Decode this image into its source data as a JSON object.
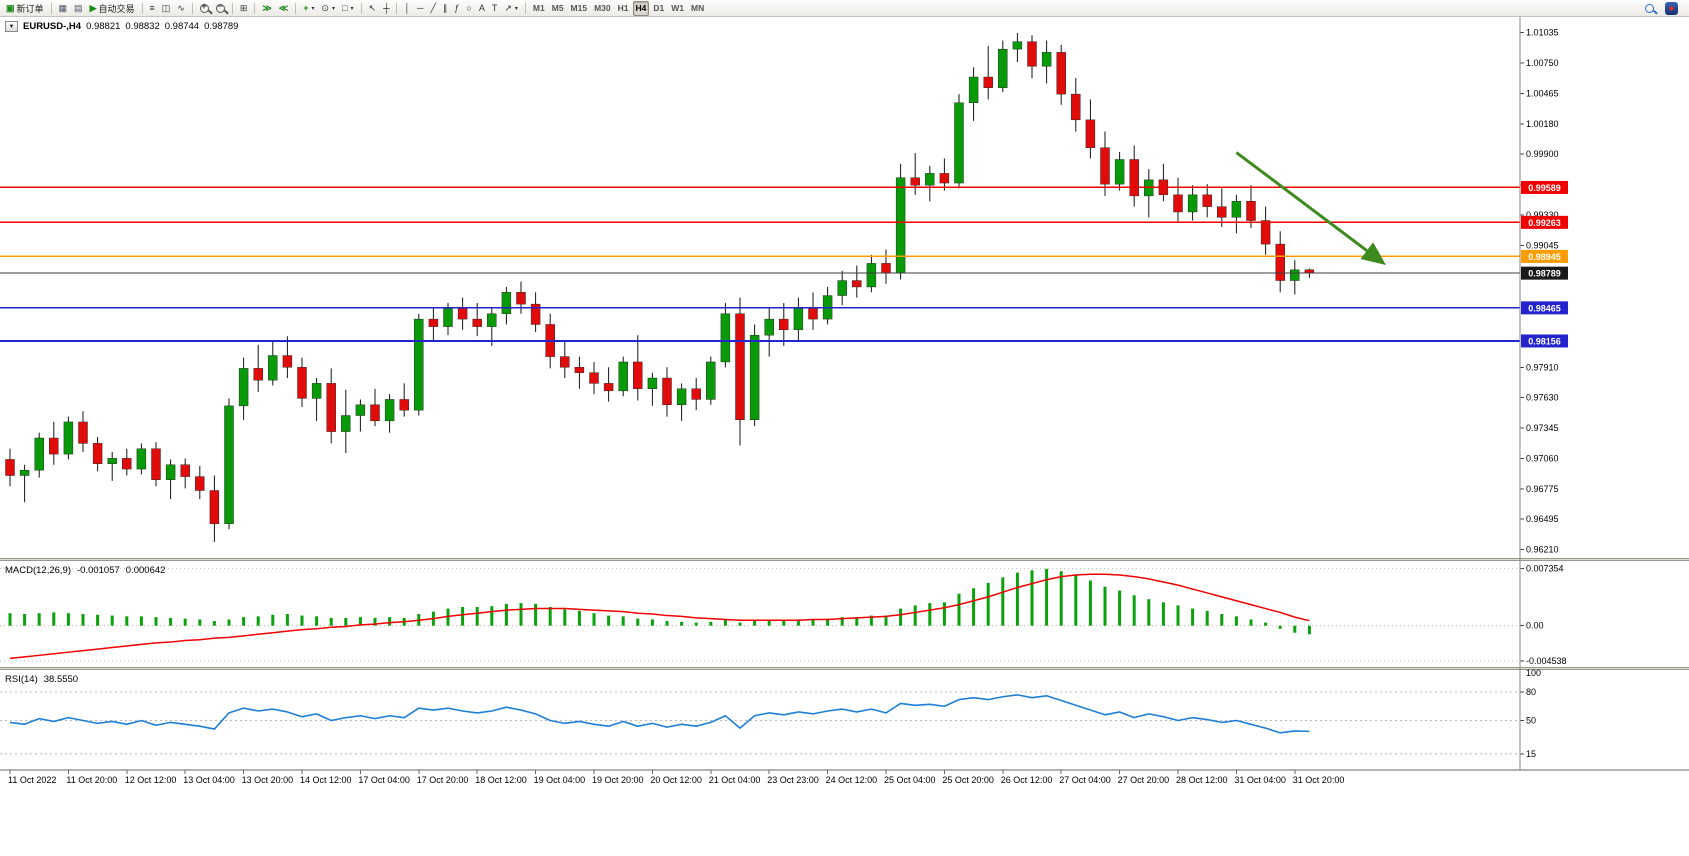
{
  "toolbar": {
    "new_order": "新订单",
    "auto_trading": "自动交易",
    "timeframes": [
      "M1",
      "M5",
      "M15",
      "M30",
      "H1",
      "H4",
      "D1",
      "W1",
      "MN"
    ],
    "active_timeframe": "H4",
    "glyphs": {
      "new_order": "▣",
      "charts": "▦",
      "market_watch": "▤",
      "auto_trading": "▶",
      "bar_chart": "≡",
      "candle_chart": "◫",
      "line_chart": "∿",
      "zoom_in": "+",
      "zoom_out": "−",
      "tile_windows": "⊞",
      "auto_scroll": "≫",
      "chart_shift": "≪",
      "indicators": "+",
      "periods": "⊙",
      "templates": "□",
      "cursor": "↖",
      "crosshair": "┼",
      "vertical_line": "│",
      "horizontal_line": "─",
      "trendline": "╱",
      "channel": "∥",
      "fibonacci": "ƒ",
      "shapes": "○",
      "text": "A",
      "text_label": "T",
      "arrows_tool": "↗",
      "caret": "▾",
      "record": "●",
      "dropdown": "▼"
    }
  },
  "chart": {
    "title": "EURUSD-,H4",
    "open": "0.98821",
    "high": "0.98832",
    "low": "0.98744",
    "close": "0.98789"
  },
  "macd": {
    "label": "MACD(12,26,9)",
    "value_main": "-0.001057",
    "value_signal": "0.000642"
  },
  "rsi": {
    "label": "RSI(14)",
    "value": "38.5550"
  },
  "chart_data": {
    "type": "candlestick",
    "symbol": "EURUSD-",
    "timeframe": "H4",
    "price_range": [
      0.9613,
      1.0118
    ],
    "axis_ticks": [
      1.01035,
      1.0075,
      1.00465,
      1.0018,
      0.999,
      0.9961,
      0.9933,
      0.99045,
      0.9791,
      0.9763,
      0.97345,
      0.9706,
      0.96775,
      0.96495,
      0.9621
    ],
    "price_levels": [
      {
        "price": 0.99589,
        "label": "0.99589",
        "color": "#f20000",
        "type": "resistance"
      },
      {
        "price": 0.99263,
        "label": "0.99263",
        "color": "#f20000",
        "type": "resistance"
      },
      {
        "price": 0.98945,
        "label": "0.98945",
        "color": "#ff9c00",
        "type": "pivot"
      },
      {
        "price": 0.98789,
        "label": "0.98789",
        "color": "#3c3c3c",
        "type": "bid"
      },
      {
        "price": 0.98465,
        "label": "0.98465",
        "color": "#2424cc",
        "type": "support"
      },
      {
        "price": 0.98156,
        "label": "0.98156",
        "color": "#2424cc",
        "type": "support"
      }
    ],
    "time_labels": [
      "11 Oct 2022",
      "11 Oct 20:00",
      "12 Oct 12:00",
      "13 Oct 04:00",
      "13 Oct 20:00",
      "14 Oct 12:00",
      "17 Oct 04:00",
      "17 Oct 20:00",
      "18 Oct 12:00",
      "19 Oct 04:00",
      "19 Oct 20:00",
      "20 Oct 12:00",
      "21 Oct 04:00",
      "23 Oct 23:00",
      "24 Oct 12:00",
      "25 Oct 04:00",
      "25 Oct 20:00",
      "26 Oct 12:00",
      "27 Oct 04:00",
      "27 Oct 20:00",
      "28 Oct 12:00",
      "31 Oct 04:00",
      "31 Oct 20:00"
    ],
    "candles": [
      [
        0.9705,
        0.9715,
        0.968,
        0.969
      ],
      [
        0.969,
        0.97,
        0.9665,
        0.9695
      ],
      [
        0.9695,
        0.973,
        0.9688,
        0.9725
      ],
      [
        0.9725,
        0.974,
        0.97,
        0.971
      ],
      [
        0.971,
        0.9745,
        0.9705,
        0.974
      ],
      [
        0.974,
        0.975,
        0.9712,
        0.972
      ],
      [
        0.972,
        0.9726,
        0.9694,
        0.9701
      ],
      [
        0.9701,
        0.9712,
        0.9685,
        0.9706
      ],
      [
        0.9706,
        0.9715,
        0.969,
        0.9696
      ],
      [
        0.9696,
        0.972,
        0.9691,
        0.9715
      ],
      [
        0.9715,
        0.9721,
        0.968,
        0.9686
      ],
      [
        0.9686,
        0.9705,
        0.9668,
        0.97
      ],
      [
        0.97,
        0.9706,
        0.9678,
        0.9689
      ],
      [
        0.9689,
        0.9699,
        0.9668,
        0.9676
      ],
      [
        0.9676,
        0.969,
        0.9628,
        0.9645
      ],
      [
        0.9645,
        0.9762,
        0.964,
        0.9755
      ],
      [
        0.9755,
        0.98,
        0.9742,
        0.979
      ],
      [
        0.979,
        0.9812,
        0.9768,
        0.9779
      ],
      [
        0.9779,
        0.9816,
        0.9774,
        0.9802
      ],
      [
        0.9802,
        0.982,
        0.9781,
        0.9791
      ],
      [
        0.9791,
        0.98,
        0.9754,
        0.9762
      ],
      [
        0.9762,
        0.9781,
        0.9741,
        0.9776
      ],
      [
        0.9776,
        0.979,
        0.972,
        0.9731
      ],
      [
        0.9731,
        0.977,
        0.9711,
        0.9746
      ],
      [
        0.9746,
        0.9761,
        0.9731,
        0.9756
      ],
      [
        0.9756,
        0.9771,
        0.9736,
        0.9741
      ],
      [
        0.9741,
        0.9766,
        0.973,
        0.9761
      ],
      [
        0.9761,
        0.9776,
        0.9745,
        0.9751
      ],
      [
        0.9751,
        0.9841,
        0.9746,
        0.9836
      ],
      [
        0.9836,
        0.9846,
        0.9815,
        0.9829
      ],
      [
        0.9829,
        0.9851,
        0.9821,
        0.9846
      ],
      [
        0.9846,
        0.9856,
        0.9826,
        0.9836
      ],
      [
        0.9836,
        0.9851,
        0.982,
        0.9829
      ],
      [
        0.9829,
        0.9846,
        0.9811,
        0.9841
      ],
      [
        0.9841,
        0.9866,
        0.9831,
        0.9861
      ],
      [
        0.9861,
        0.9871,
        0.9841,
        0.985
      ],
      [
        0.985,
        0.9861,
        0.9824,
        0.9831
      ],
      [
        0.9831,
        0.9841,
        0.979,
        0.9801
      ],
      [
        0.9801,
        0.9816,
        0.9781,
        0.9791
      ],
      [
        0.9791,
        0.9801,
        0.9771,
        0.9786
      ],
      [
        0.9786,
        0.9796,
        0.9766,
        0.9776
      ],
      [
        0.9776,
        0.9791,
        0.9759,
        0.9769
      ],
      [
        0.9769,
        0.9801,
        0.9764,
        0.9796
      ],
      [
        0.9796,
        0.9821,
        0.976,
        0.9771
      ],
      [
        0.9771,
        0.9786,
        0.9755,
        0.9781
      ],
      [
        0.9781,
        0.9791,
        0.9745,
        0.9756
      ],
      [
        0.9756,
        0.9776,
        0.9741,
        0.9771
      ],
      [
        0.9771,
        0.9781,
        0.9751,
        0.9761
      ],
      [
        0.9761,
        0.9801,
        0.9756,
        0.9796
      ],
      [
        0.9796,
        0.9851,
        0.9791,
        0.9841
      ],
      [
        0.9841,
        0.9856,
        0.9718,
        0.9742
      ],
      [
        0.9742,
        0.9831,
        0.9736,
        0.9821
      ],
      [
        0.9821,
        0.9846,
        0.9801,
        0.9836
      ],
      [
        0.9836,
        0.9851,
        0.9811,
        0.9826
      ],
      [
        0.9826,
        0.9856,
        0.9816,
        0.9846
      ],
      [
        0.9846,
        0.9861,
        0.9826,
        0.9836
      ],
      [
        0.9836,
        0.9866,
        0.9831,
        0.9858
      ],
      [
        0.9858,
        0.9881,
        0.9849,
        0.9872
      ],
      [
        0.9872,
        0.9886,
        0.9856,
        0.9866
      ],
      [
        0.9866,
        0.9896,
        0.9861,
        0.9888
      ],
      [
        0.9888,
        0.9901,
        0.9869,
        0.9879
      ],
      [
        0.9879,
        0.9981,
        0.9873,
        0.9968
      ],
      [
        0.9968,
        0.9991,
        0.9952,
        0.9961
      ],
      [
        0.9961,
        0.9979,
        0.9946,
        0.9972
      ],
      [
        0.9972,
        0.9986,
        0.9956,
        0.9963
      ],
      [
        0.9963,
        1.0046,
        0.9958,
        1.0038
      ],
      [
        1.0038,
        1.0071,
        1.0021,
        1.0062
      ],
      [
        1.0062,
        1.0091,
        1.0041,
        1.0052
      ],
      [
        1.0052,
        1.0096,
        1.0048,
        1.0088
      ],
      [
        1.0088,
        1.0103,
        1.0076,
        1.0095
      ],
      [
        1.0095,
        1.0101,
        1.0061,
        1.0072
      ],
      [
        1.0072,
        1.0096,
        1.0056,
        1.0085
      ],
      [
        1.0085,
        1.0092,
        1.0036,
        1.0046
      ],
      [
        1.0046,
        1.0061,
        1.0011,
        1.0022
      ],
      [
        1.0022,
        1.0041,
        0.9986,
        0.9996
      ],
      [
        0.9996,
        1.0011,
        0.9951,
        0.9962
      ],
      [
        0.9962,
        0.9992,
        0.9956,
        0.9985
      ],
      [
        0.9985,
        0.9998,
        0.9941,
        0.9951
      ],
      [
        0.9951,
        0.9976,
        0.9931,
        0.9966
      ],
      [
        0.9966,
        0.9981,
        0.9946,
        0.9952
      ],
      [
        0.9952,
        0.9968,
        0.9926,
        0.9936
      ],
      [
        0.9936,
        0.9961,
        0.9928,
        0.9952
      ],
      [
        0.9952,
        0.9962,
        0.9931,
        0.9941
      ],
      [
        0.9941,
        0.9958,
        0.9922,
        0.9931
      ],
      [
        0.9931,
        0.9952,
        0.9916,
        0.9946
      ],
      [
        0.9946,
        0.9961,
        0.9921,
        0.9928
      ],
      [
        0.9928,
        0.9941,
        0.9896,
        0.9906
      ],
      [
        0.9906,
        0.9918,
        0.9861,
        0.9872
      ],
      [
        0.9872,
        0.9891,
        0.9859,
        0.9882
      ],
      [
        0.98821,
        0.98832,
        0.98744,
        0.98789
      ]
    ],
    "arrow": {
      "x1_index": 84,
      "price1": 0.99915,
      "x2_index": 94,
      "price2": 0.9889,
      "color": "#3e8a1e"
    },
    "macd": {
      "range": [
        -0.0053,
        0.0083
      ],
      "axis_levels": [
        0.007354,
        0,
        -0.004538
      ],
      "axis_labels": [
        "0.007354",
        "0.00",
        "-0.004538"
      ],
      "histogram_color": "#0aa10a",
      "signal_color": "#f20000",
      "histogram": [
        0.0016,
        0.0015,
        0.0016,
        0.0017,
        0.0016,
        0.0015,
        0.0014,
        0.0013,
        0.0012,
        0.0012,
        0.0011,
        0.001,
        0.0009,
        0.0008,
        0.0006,
        0.0008,
        0.0011,
        0.0012,
        0.0014,
        0.0015,
        0.0013,
        0.0012,
        0.001,
        0.001,
        0.0011,
        0.001,
        0.0011,
        0.001,
        0.0015,
        0.0018,
        0.0022,
        0.0024,
        0.0024,
        0.0025,
        0.0028,
        0.0029,
        0.0028,
        0.0024,
        0.0021,
        0.0019,
        0.0016,
        0.0013,
        0.0012,
        0.0009,
        0.0008,
        0.0006,
        0.0005,
        0.0004,
        0.0005,
        0.0008,
        0.0004,
        0.0006,
        0.0007,
        0.0007,
        0.0008,
        0.0008,
        0.0009,
        0.0011,
        0.0011,
        0.0013,
        0.0013,
        0.0022,
        0.0026,
        0.0029,
        0.003,
        0.0041,
        0.0048,
        0.0055,
        0.0062,
        0.0068,
        0.0071,
        0.0073,
        0.007,
        0.0065,
        0.0058,
        0.005,
        0.0045,
        0.0039,
        0.0034,
        0.003,
        0.0026,
        0.0022,
        0.0019,
        0.0015,
        0.0012,
        0.0008,
        0.0004,
        -0.0004,
        -0.0009,
        -0.0011
      ],
      "signal": [
        -0.0042,
        -0.004,
        -0.0038,
        -0.0036,
        -0.0034,
        -0.0032,
        -0.003,
        -0.0028,
        -0.0026,
        -0.0024,
        -0.0022,
        -0.0021,
        -0.0019,
        -0.0018,
        -0.0016,
        -0.0015,
        -0.0013,
        -0.0011,
        -0.0009,
        -0.0007,
        -0.0005,
        -0.0004,
        -0.0002,
        -0.0001,
        0.0001,
        0.0002,
        0.0004,
        0.0005,
        0.0007,
        0.0009,
        0.0012,
        0.0014,
        0.0016,
        0.0018,
        0.002,
        0.0021,
        0.0022,
        0.0022,
        0.0022,
        0.0021,
        0.002,
        0.0019,
        0.0018,
        0.0016,
        0.0015,
        0.0013,
        0.0012,
        0.001,
        0.0009,
        0.0008,
        0.0007,
        0.0007,
        0.0007,
        0.0007,
        0.0007,
        0.0008,
        0.0008,
        0.0009,
        0.001,
        0.0011,
        0.0012,
        0.0014,
        0.0017,
        0.002,
        0.0023,
        0.0027,
        0.0032,
        0.0037,
        0.0043,
        0.0049,
        0.0054,
        0.0059,
        0.0063,
        0.0065,
        0.0066,
        0.0066,
        0.0065,
        0.0063,
        0.006,
        0.0056,
        0.0052,
        0.0047,
        0.0042,
        0.0037,
        0.0032,
        0.0027,
        0.0022,
        0.0017,
        0.0011,
        0.000642
      ]
    },
    "rsi": {
      "range": [
        0,
        100
      ],
      "levels": [
        80,
        50,
        15
      ],
      "axis_labels": [
        "100",
        "80",
        "50",
        "15"
      ],
      "line_color": "#1e7fd6",
      "values": [
        48,
        46,
        52,
        49,
        53,
        50,
        47,
        49,
        46,
        50,
        45,
        48,
        46,
        44,
        41,
        58,
        63,
        60,
        62,
        59,
        54,
        57,
        50,
        53,
        55,
        52,
        55,
        53,
        63,
        61,
        63,
        60,
        58,
        60,
        64,
        61,
        57,
        50,
        47,
        49,
        46,
        44,
        49,
        44,
        47,
        43,
        46,
        44,
        48,
        55,
        42,
        55,
        58,
        56,
        59,
        57,
        60,
        62,
        59,
        62,
        58,
        68,
        66,
        67,
        65,
        72,
        74,
        72,
        75,
        77,
        74,
        76,
        71,
        66,
        61,
        56,
        59,
        53,
        57,
        54,
        50,
        53,
        51,
        48,
        50,
        46,
        42,
        37,
        39,
        38.56
      ]
    },
    "colors": {
      "bull": "#089a08",
      "bear": "#e00b0b",
      "wick": "#141414",
      "background": "#ffffff",
      "axis_text": "#000000"
    }
  }
}
